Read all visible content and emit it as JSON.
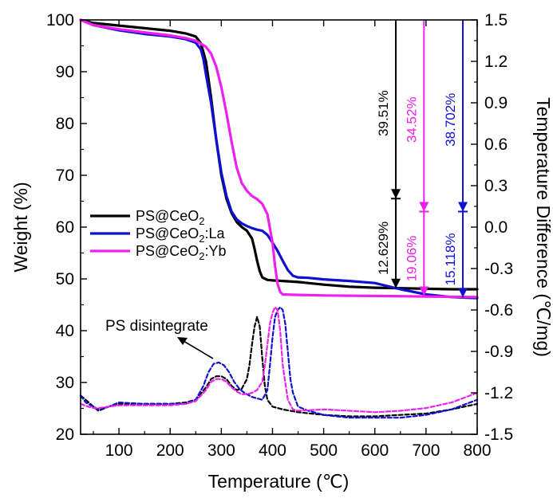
{
  "chart_data": {
    "type": "line",
    "xlabel": "Temperature (℃)",
    "ylabel": "Weight (%)",
    "y2label": "Temperature Difference (℃/mg)",
    "xlim": [
      25,
      800
    ],
    "ylim": [
      20,
      100
    ],
    "y2lim": [
      -1.5,
      1.5
    ],
    "x_ticks": [
      "100",
      "200",
      "300",
      "400",
      "500",
      "600",
      "700",
      "800"
    ],
    "y_ticks": [
      "20",
      "30",
      "40",
      "50",
      "60",
      "70",
      "80",
      "90",
      "100"
    ],
    "y2_ticks": [
      "-1.5",
      "-1.2",
      "-0.9",
      "-0.6",
      "-0.3",
      "0.0",
      "0.3",
      "0.6",
      "0.9",
      "1.2",
      "1.5"
    ],
    "legend": {
      "position": "center-left",
      "entries": [
        {
          "label": "PS@CeO",
          "sub": "2",
          "suffix": "",
          "color": "#000000"
        },
        {
          "label": "PS@CeO",
          "sub": "2",
          "suffix": ":La",
          "color": "#1010d0"
        },
        {
          "label": "PS@CeO",
          "sub": "2",
          "suffix": ":Yb",
          "color": "#ee20ee"
        }
      ]
    },
    "series": [
      {
        "name": "PS@CeO2",
        "axis": "left",
        "style": "solid",
        "color": "#000000",
        "x": [
          25,
          50,
          100,
          150,
          200,
          230,
          250,
          260,
          270,
          280,
          290,
          300,
          310,
          320,
          330,
          340,
          350,
          360,
          365,
          370,
          375,
          380,
          390,
          400,
          420,
          450,
          500,
          550,
          600,
          650,
          700,
          750,
          800
        ],
        "y": [
          100,
          99.4,
          98.9,
          98.4,
          97.9,
          97.4,
          96.8,
          95.5,
          92,
          85,
          77,
          70,
          65.5,
          62.7,
          61,
          60,
          59.3,
          57.8,
          55.8,
          53.5,
          51.5,
          50.3,
          49.8,
          49.7,
          49.6,
          49.4,
          48.9,
          48.5,
          48.3,
          48.2,
          48.1,
          48,
          48
        ]
      },
      {
        "name": "PS@CeO2:La",
        "axis": "left",
        "style": "solid",
        "color": "#1010d0",
        "x": [
          25,
          50,
          100,
          150,
          200,
          230,
          250,
          260,
          265,
          270,
          280,
          290,
          300,
          310,
          320,
          330,
          340,
          350,
          360,
          370,
          380,
          390,
          400,
          410,
          420,
          430,
          440,
          450,
          470,
          500,
          550,
          600,
          650,
          700,
          750,
          800
        ],
        "y": [
          100,
          99,
          98,
          97.3,
          96.8,
          96.3,
          95.6,
          94.3,
          92.5,
          89.5,
          84,
          77,
          70.5,
          66,
          63,
          61.5,
          60.7,
          60.2,
          59.8,
          59.5,
          59.3,
          58.5,
          57,
          55.4,
          53.5,
          51.7,
          50.6,
          50.3,
          50.2,
          49.9,
          49.6,
          49.2,
          48,
          47,
          46.5,
          46.3
        ]
      },
      {
        "name": "PS@CeO2:Yb",
        "axis": "left",
        "style": "solid",
        "color": "#ee20ee",
        "x": [
          25,
          50,
          100,
          150,
          200,
          230,
          250,
          270,
          280,
          290,
          300,
          310,
          320,
          330,
          340,
          350,
          360,
          370,
          380,
          390,
          400,
          405,
          410,
          415,
          420,
          450,
          500,
          600,
          700,
          800
        ],
        "y": [
          100,
          99,
          98.2,
          97.6,
          97,
          96.5,
          96,
          94.8,
          93.5,
          91,
          87,
          82,
          76.5,
          71.5,
          68.5,
          67,
          66,
          65.4,
          64.5,
          62.5,
          57,
          52.5,
          49,
          47.5,
          47,
          46.9,
          46.8,
          46.7,
          46.6,
          46.5
        ]
      },
      {
        "name": "PS@CeO2 DTA",
        "axis": "right",
        "style": "dashed",
        "color": "#000000",
        "x": [
          25,
          35,
          50,
          60,
          80,
          100,
          150,
          200,
          230,
          250,
          270,
          280,
          290,
          300,
          310,
          320,
          330,
          340,
          350,
          355,
          360,
          365,
          370,
          375,
          380,
          385,
          390,
          400,
          420,
          450,
          500,
          550,
          600,
          650,
          700,
          750,
          800
        ],
        "y": [
          -1.22,
          -1.25,
          -1.3,
          -1.33,
          -1.3,
          -1.28,
          -1.28,
          -1.28,
          -1.27,
          -1.25,
          -1.16,
          -1.1,
          -1.08,
          -1.08,
          -1.1,
          -1.15,
          -1.18,
          -1.17,
          -1.1,
          -1.0,
          -0.85,
          -0.72,
          -0.65,
          -0.72,
          -0.95,
          -1.15,
          -1.25,
          -1.3,
          -1.32,
          -1.34,
          -1.36,
          -1.37,
          -1.37,
          -1.36,
          -1.35,
          -1.32,
          -1.28
        ]
      },
      {
        "name": "PS@CeO2:La DTA",
        "axis": "right",
        "style": "dashed",
        "color": "#1010d0",
        "x": [
          25,
          35,
          50,
          60,
          80,
          100,
          150,
          200,
          230,
          250,
          265,
          275,
          285,
          295,
          305,
          315,
          325,
          335,
          345,
          360,
          380,
          390,
          395,
          400,
          405,
          410,
          415,
          420,
          425,
          430,
          435,
          440,
          450,
          470,
          500,
          550,
          600,
          650,
          700,
          750,
          800
        ],
        "y": [
          -1.22,
          -1.27,
          -1.3,
          -1.32,
          -1.3,
          -1.27,
          -1.28,
          -1.28,
          -1.28,
          -1.25,
          -1.15,
          -1.05,
          -0.99,
          -0.98,
          -1.0,
          -1.05,
          -1.12,
          -1.17,
          -1.2,
          -1.23,
          -1.25,
          -1.18,
          -1.0,
          -0.8,
          -0.65,
          -0.6,
          -0.58,
          -0.6,
          -0.7,
          -0.9,
          -1.1,
          -1.2,
          -1.3,
          -1.33,
          -1.36,
          -1.38,
          -1.38,
          -1.38,
          -1.36,
          -1.32,
          -1.25
        ]
      },
      {
        "name": "PS@CeO2:Yb DTA",
        "axis": "right",
        "style": "dashed",
        "color": "#ee20ee",
        "x": [
          25,
          40,
          50,
          60,
          80,
          100,
          150,
          200,
          230,
          250,
          270,
          280,
          290,
          300,
          310,
          320,
          330,
          340,
          350,
          360,
          370,
          380,
          385,
          390,
          395,
          400,
          405,
          410,
          415,
          420,
          430,
          440,
          450,
          500,
          550,
          600,
          650,
          700,
          750,
          800
        ],
        "y": [
          -1.28,
          -1.3,
          -1.31,
          -1.31,
          -1.3,
          -1.29,
          -1.29,
          -1.29,
          -1.28,
          -1.26,
          -1.18,
          -1.12,
          -1.1,
          -1.1,
          -1.12,
          -1.16,
          -1.19,
          -1.21,
          -1.21,
          -1.2,
          -1.18,
          -1.12,
          -1.0,
          -0.85,
          -0.7,
          -0.62,
          -0.58,
          -0.6,
          -0.75,
          -1.0,
          -1.25,
          -1.32,
          -1.33,
          -1.32,
          -1.33,
          -1.34,
          -1.33,
          -1.31,
          -1.27,
          -1.2
        ]
      }
    ],
    "annotations": {
      "disintegrate_label": "PS disintegrate",
      "black_pct_top": "39.51%",
      "black_pct_bottom": "12.629%",
      "magenta_pct_top": "34.52%",
      "magenta_pct_bottom": "19.06%",
      "blue_pct_top": "38.702%",
      "blue_pct_bottom": "15.118%"
    }
  }
}
